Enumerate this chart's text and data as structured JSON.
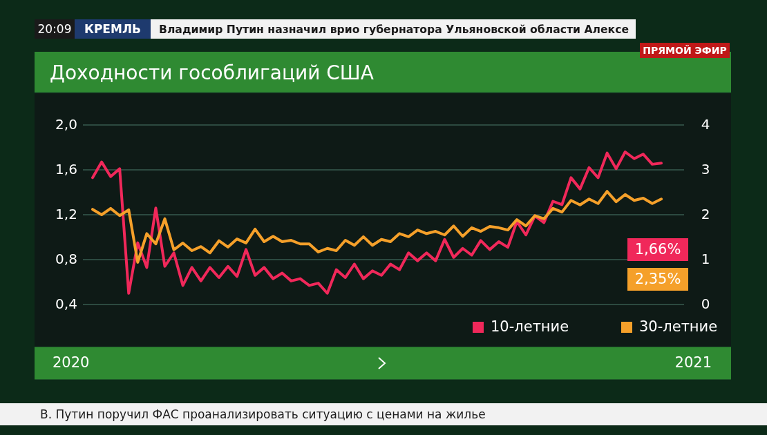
{
  "chart_data": {
    "type": "line",
    "title": "Доходности гособлигаций США",
    "categories": [
      null,
      null,
      null,
      null,
      null,
      null,
      null,
      null,
      null,
      null,
      null,
      null,
      null,
      null,
      null,
      null,
      null,
      null,
      null,
      null,
      null,
      null,
      null,
      null,
      null,
      null,
      null,
      null,
      null,
      null,
      null,
      null,
      null,
      null,
      null,
      null,
      null,
      null,
      null,
      null,
      null,
      null,
      null,
      null,
      null,
      null,
      null,
      null,
      null,
      null,
      null,
      null,
      null,
      null,
      null,
      null,
      null,
      null,
      null,
      null,
      null,
      null,
      null,
      null
    ],
    "series": [
      {
        "name": "10-летние",
        "color": "#f0285a",
        "values": [
          1.53,
          1.67,
          1.54,
          1.61,
          0.5,
          0.95,
          0.73,
          1.26,
          0.74,
          0.86,
          0.57,
          0.73,
          0.61,
          0.73,
          0.64,
          0.74,
          0.65,
          0.89,
          0.66,
          0.73,
          0.63,
          0.68,
          0.61,
          0.63,
          0.57,
          0.59,
          0.5,
          0.71,
          0.64,
          0.76,
          0.63,
          0.7,
          0.66,
          0.76,
          0.71,
          0.86,
          0.79,
          0.86,
          0.79,
          0.98,
          0.82,
          0.9,
          0.84,
          0.97,
          0.89,
          0.96,
          0.91,
          1.14,
          1.02,
          1.19,
          1.13,
          1.32,
          1.29,
          1.53,
          1.43,
          1.62,
          1.53,
          1.75,
          1.61,
          1.76,
          1.7,
          1.74,
          1.65,
          1.66
        ]
      },
      {
        "name": "30-летние",
        "color": "#f5a02a",
        "axis": "y2",
        "values": [
          2.12,
          2.0,
          2.14,
          1.98,
          2.11,
          0.94,
          1.58,
          1.35,
          1.91,
          1.22,
          1.37,
          1.2,
          1.29,
          1.15,
          1.42,
          1.28,
          1.46,
          1.37,
          1.68,
          1.4,
          1.52,
          1.4,
          1.43,
          1.35,
          1.35,
          1.17,
          1.25,
          1.2,
          1.43,
          1.32,
          1.51,
          1.32,
          1.45,
          1.4,
          1.58,
          1.51,
          1.66,
          1.58,
          1.63,
          1.55,
          1.75,
          1.52,
          1.71,
          1.63,
          1.74,
          1.71,
          1.66,
          1.89,
          1.75,
          1.98,
          1.91,
          2.14,
          2.06,
          2.32,
          2.22,
          2.35,
          2.25,
          2.52,
          2.29,
          2.45,
          2.32,
          2.37,
          2.25,
          2.35
        ]
      }
    ],
    "ylim": [
      0.4,
      2.0
    ],
    "yticks": [
      {
        "value": 0.4,
        "label": "0,4"
      },
      {
        "value": 0.8,
        "label": "0,8"
      },
      {
        "value": 1.2,
        "label": "1,2"
      },
      {
        "value": 1.6,
        "label": "1,6"
      },
      {
        "value": 2.0,
        "label": "2,0"
      }
    ],
    "y2lim": [
      0,
      4
    ],
    "y2ticks": [
      0,
      1,
      2,
      3,
      4
    ],
    "grid": "y",
    "legend": "bottom right",
    "annotations": [
      "1,66%",
      "2,35%",
      "2020",
      "2021",
      "20:09",
      "КРЕМЛЬ",
      "Владимир Путин назначил врио губернатора  Ульяновской области Алексе",
      "ПРЯМОЙ ЭФИР",
      "В. Путин поручил ФАС проанализировать ситуацию с ценами на жилье"
    ]
  }
}
